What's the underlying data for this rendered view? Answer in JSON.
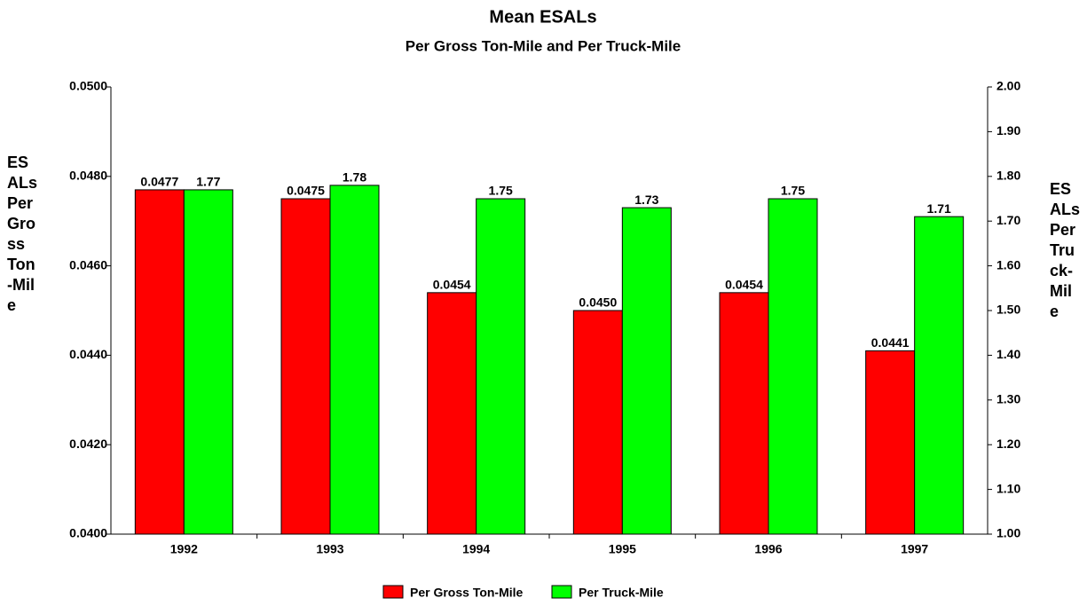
{
  "chart_data": {
    "type": "bar",
    "title": "Mean ESALs",
    "subtitle": "Per Gross Ton-Mile and Per Truck-Mile",
    "ylabel": "ESALs Per Gross Ton-Mile",
    "y2label": "ESALs Per Truck-Mile",
    "categories": [
      "1992",
      "1993",
      "1994",
      "1995",
      "1996",
      "1997"
    ],
    "series": [
      {
        "name": "Per Gross Ton-Mile",
        "color": "#ff0000",
        "values": [
          0.0477,
          0.0475,
          0.0454,
          0.045,
          0.0454,
          0.0441
        ],
        "value_labels": [
          "0.0477",
          "0.0475",
          "0.0454",
          "0.0450",
          "0.0454",
          "0.0441"
        ]
      },
      {
        "name": "Per Truck-Mile",
        "color": "#00ff00",
        "axis": "y2",
        "values": [
          1.77,
          1.78,
          1.75,
          1.73,
          1.75,
          1.71
        ],
        "value_labels": [
          "1.77",
          "1.78",
          "1.75",
          "1.73",
          "1.75",
          "1.71"
        ]
      }
    ],
    "ylim": [
      0.04,
      0.05
    ],
    "yticks": [
      {
        "value": 0.04,
        "label": "0.0400"
      },
      {
        "value": 0.042,
        "label": "0.0420"
      },
      {
        "value": 0.044,
        "label": "0.0440"
      },
      {
        "value": 0.046,
        "label": "0.0460"
      },
      {
        "value": 0.048,
        "label": "0.0480"
      },
      {
        "value": 0.05,
        "label": "0.0500"
      }
    ],
    "y2lim": [
      1,
      2
    ],
    "y2ticks": [
      {
        "value": 1,
        "label": "1.00"
      },
      {
        "value": 1.1,
        "label": "1.10"
      },
      {
        "value": 1.2,
        "label": "1.20"
      },
      {
        "value": 1.3,
        "label": "1.30"
      },
      {
        "value": 1.4,
        "label": "1.40"
      },
      {
        "value": 1.5,
        "label": "1.50"
      },
      {
        "value": 1.6,
        "label": "1.60"
      },
      {
        "value": 1.7,
        "label": "1.70"
      },
      {
        "value": 1.8,
        "label": "1.80"
      },
      {
        "value": 1.9,
        "label": "1.90"
      },
      {
        "value": 2,
        "label": "2.00"
      }
    ],
    "legend": "bottom"
  }
}
